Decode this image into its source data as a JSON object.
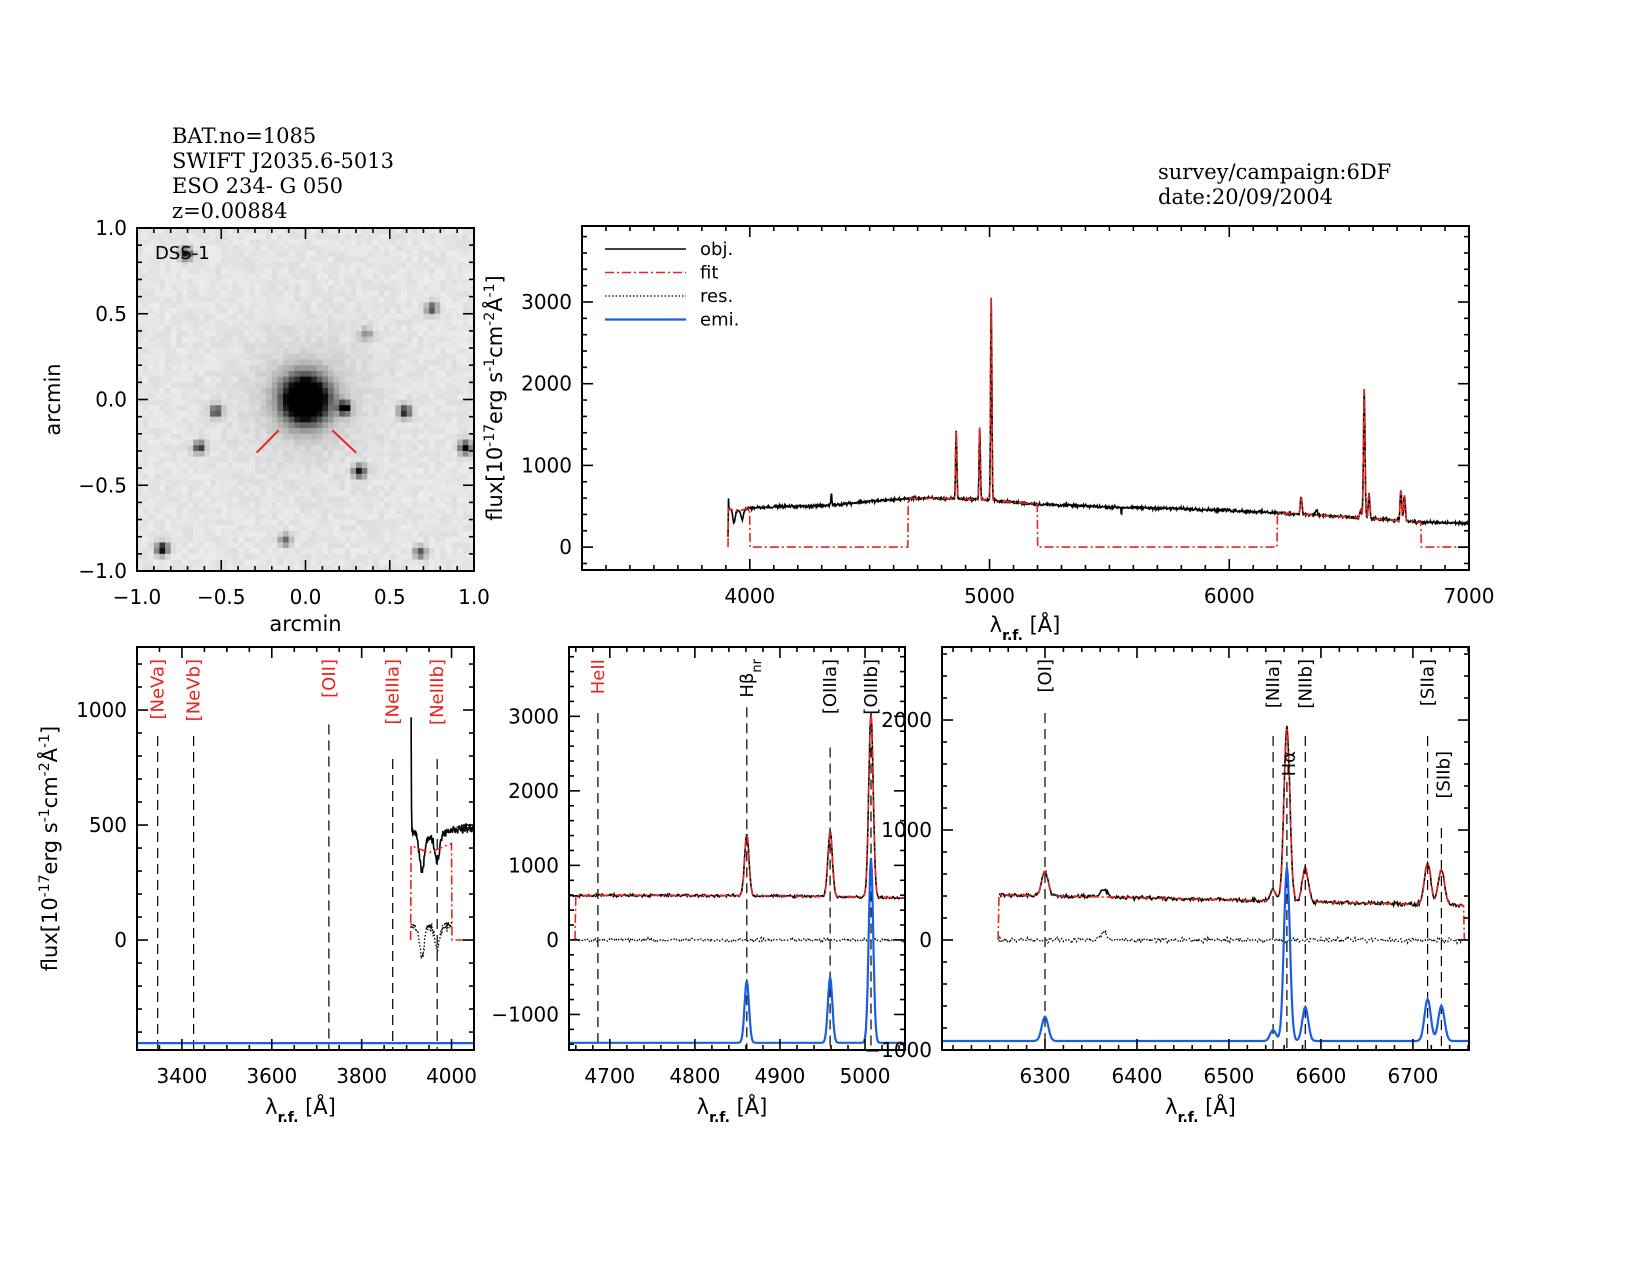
{
  "header": {
    "bat_no": "BAT.no=1085",
    "swift_name": "SWIFT J2035.6-5013",
    "galaxy_name": "ESO 234- G 050",
    "redshift": "z=0.00884",
    "survey": "survey/campaign:6DF",
    "date": "date:20/09/2004"
  },
  "colors": {
    "obj": "#000000",
    "fit": "#e8251f",
    "res": "#000000",
    "emi": "#1a5fe0",
    "marker_red": "#e8251f",
    "marker_black": "#000000"
  },
  "chart_data": {
    "type": "line",
    "dss": {
      "title": "DSS-1",
      "xlabel": "arcmin",
      "ylabel": "arcmin",
      "xlim": [
        -1.0,
        1.0
      ],
      "ylim": [
        -1.0,
        1.0
      ],
      "xticks": [
        "-1.0",
        "-0.5",
        "0.0",
        "0.5",
        "1.0"
      ],
      "yticks": [
        "-1.0",
        "-0.5",
        "0.0",
        "0.5",
        "1.0"
      ],
      "galaxy_center": [
        0.0,
        0.0
      ],
      "stars": [
        [
          0.23,
          -0.05,
          0.9
        ],
        [
          0.59,
          -0.07,
          0.7
        ],
        [
          -0.53,
          -0.07,
          0.6
        ],
        [
          -0.63,
          -0.28,
          0.6
        ],
        [
          0.32,
          -0.42,
          0.7
        ],
        [
          0.95,
          -0.28,
          0.8
        ],
        [
          -0.85,
          -0.87,
          0.8
        ],
        [
          0.68,
          -0.89,
          0.5
        ],
        [
          -0.12,
          -0.82,
          0.4
        ],
        [
          -0.71,
          0.85,
          0.7
        ],
        [
          0.75,
          0.53,
          0.5
        ],
        [
          0.36,
          0.38,
          0.3
        ]
      ],
      "markers": [
        [
          [
            -0.29,
            -0.31
          ],
          [
            -0.16,
            -0.18
          ]
        ],
        [
          [
            0.16,
            -0.18
          ],
          [
            0.3,
            -0.31
          ]
        ]
      ]
    },
    "spectrum_model": {
      "continuum_knots": [
        [
          3300,
          0
        ],
        [
          3909,
          0
        ],
        [
          3910,
          470
        ],
        [
          3950,
          440
        ],
        [
          4000,
          480
        ],
        [
          4100,
          495
        ],
        [
          4300,
          505
        ],
        [
          4500,
          560
        ],
        [
          4700,
          600
        ],
        [
          4900,
          590
        ],
        [
          5000,
          575
        ],
        [
          5200,
          525
        ],
        [
          5500,
          490
        ],
        [
          5800,
          470
        ],
        [
          6000,
          450
        ],
        [
          6200,
          420
        ],
        [
          6400,
          385
        ],
        [
          6600,
          345
        ],
        [
          6800,
          305
        ],
        [
          7000,
          290
        ]
      ],
      "lines": [
        {
          "wl": 3910,
          "amp": 480,
          "sigma": 0.6,
          "emi": false,
          "fit": false
        },
        {
          "wl": 3934,
          "amp": -150,
          "sigma": 5,
          "emi": false,
          "fit": false
        },
        {
          "wl": 3968,
          "amp": -110,
          "sigma": 5,
          "emi": false,
          "fit": false
        },
        {
          "wl": 4340,
          "amp": 140,
          "sigma": 2,
          "emi": false,
          "fit": false
        },
        {
          "wl": 4861,
          "amp": 830,
          "sigma": 2.6,
          "emi": true,
          "fit": true
        },
        {
          "wl": 4959,
          "amp": 880,
          "sigma": 2.6,
          "emi": true,
          "fit": true
        },
        {
          "wl": 5007,
          "amp": 2480,
          "sigma": 2.6,
          "emi": true,
          "fit": true
        },
        {
          "wl": 5550,
          "amp": -280,
          "sigma": 0.6,
          "emi": false,
          "fit": false
        },
        {
          "wl": 6300,
          "amp": 220,
          "sigma": 3.5,
          "emi": true,
          "fit": true
        },
        {
          "wl": 6364,
          "amp": 70,
          "sigma": 3.5,
          "emi": false,
          "fit": false
        },
        {
          "wl": 6548,
          "amp": 100,
          "sigma": 3.2,
          "emi": true,
          "fit": true
        },
        {
          "wl": 6563,
          "amp": 1580,
          "sigma": 3.2,
          "emi": true,
          "fit": true
        },
        {
          "wl": 6583,
          "amp": 310,
          "sigma": 3.2,
          "emi": true,
          "fit": true
        },
        {
          "wl": 6716,
          "amp": 380,
          "sigma": 3.4,
          "emi": true,
          "fit": true
        },
        {
          "wl": 6731,
          "amp": 320,
          "sigma": 3.4,
          "emi": true,
          "fit": true
        }
      ]
    },
    "overview": {
      "xlim": [
        3300,
        7000
      ],
      "ylim": [
        -280,
        3930
      ],
      "xticks": [
        4000,
        5000,
        6000,
        7000
      ],
      "yticks": [
        0,
        1000,
        2000,
        3000
      ],
      "xlabel_parts": [
        {
          "t": "λ"
        },
        {
          "t": "r.f.",
          "sub": true
        },
        {
          "t": " [Å]"
        }
      ],
      "ylabel_parts": [
        {
          "t": "flux[10"
        },
        {
          "t": "-17",
          "sup": true
        },
        {
          "t": "erg s"
        },
        {
          "t": "-1",
          "sup": true
        },
        {
          "t": "cm"
        },
        {
          "t": "-2",
          "sup": true
        },
        {
          "t": "Å"
        },
        {
          "t": "-1",
          "sup": true
        },
        {
          "t": "]"
        }
      ],
      "fit_windows": [
        [
          3910,
          4000
        ],
        [
          4660,
          5200
        ],
        [
          6200,
          6800
        ]
      ],
      "legend": [
        {
          "label": "obj.",
          "style": "obj"
        },
        {
          "label": "fit",
          "style": "fit"
        },
        {
          "label": "res.",
          "style": "res"
        },
        {
          "label": "emi.",
          "style": "emi"
        }
      ]
    },
    "panels": [
      {
        "id": "blue",
        "xlim": [
          3300,
          4050
        ],
        "ylim": [
          -478,
          1274
        ],
        "xticks": [
          3400,
          3600,
          3800,
          4000
        ],
        "yticks": [
          0,
          500,
          1000
        ],
        "obj_range": [
          3910,
          4050
        ],
        "fit_range": [
          3910,
          4000
        ],
        "res_range": [
          3910,
          4000
        ],
        "emi_baseline": -448,
        "xlabel_parts": [
          {
            "t": "λ"
          },
          {
            "t": "r.f.",
            "sub": true
          },
          {
            "t": " [Å]"
          }
        ],
        "ylabel_parts": [
          {
            "t": "flux[10"
          },
          {
            "t": "-17",
            "sup": true
          },
          {
            "t": "erg s"
          },
          {
            "t": "-1",
            "sup": true
          },
          {
            "t": "cm"
          },
          {
            "t": "-2",
            "sup": true
          },
          {
            "t": "Å"
          },
          {
            "t": "-1",
            "sup": true
          },
          {
            "t": "]"
          }
        ],
        "markers": [
          {
            "wl": 3346,
            "label": "[NeVa]",
            "color": "red"
          },
          {
            "wl": 3426,
            "label": "[NeVb]",
            "color": "red"
          },
          {
            "wl": 3727,
            "label": "[OII]",
            "color": "red"
          },
          {
            "wl": 3869,
            "label": "[NeIIIa]",
            "color": "red"
          },
          {
            "wl": 3968,
            "label": "[NeIIIb]",
            "color": "red"
          }
        ]
      },
      {
        "id": "hbeta",
        "xlim": [
          4652,
          5047
        ],
        "ylim": [
          -1477,
          3930
        ],
        "xticks": [
          4700,
          4800,
          4900,
          5000
        ],
        "yticks": [
          -1000,
          0,
          1000,
          2000,
          3000
        ],
        "obj_range": [
          4652,
          5047
        ],
        "fit_range": [
          4660,
          5047
        ],
        "res_range": [
          4660,
          5047
        ],
        "emi_baseline": -1380,
        "xlabel_parts": [
          {
            "t": "λ"
          },
          {
            "t": "r.f.",
            "sub": true
          },
          {
            "t": " [Å]"
          }
        ],
        "markers": [
          {
            "wl": 4686,
            "label": "HeII",
            "color": "red"
          },
          {
            "wl": 4861,
            "label": "Hβ",
            "sub": "nr",
            "color": "black"
          },
          {
            "wl": 4959,
            "label": "[OIIIa]",
            "color": "black"
          },
          {
            "wl": 5007,
            "label": "[OIIIb]",
            "color": "black"
          }
        ]
      },
      {
        "id": "halpha",
        "xlim": [
          6188,
          6761
        ],
        "ylim": [
          -1000,
          2664
        ],
        "xticks": [
          6300,
          6400,
          6500,
          6600,
          6700
        ],
        "yticks": [
          -1000,
          0,
          1000,
          2000
        ],
        "obj_range": [
          6250,
          6755
        ],
        "fit_range": [
          6250,
          6755
        ],
        "res_range": [
          6250,
          6755
        ],
        "emi_baseline": -918,
        "xlabel_parts": [
          {
            "t": "λ"
          },
          {
            "t": "r.f.",
            "sub": true
          },
          {
            "t": " [Å]"
          }
        ],
        "markers": [
          {
            "wl": 6300,
            "label": "[OI]",
            "color": "black"
          },
          {
            "wl": 6548,
            "label": "[NIIa]",
            "color": "black"
          },
          {
            "wl": 6563,
            "label": "Hα",
            "color": "black"
          },
          {
            "wl": 6583,
            "label": "[NIIb]",
            "color": "black"
          },
          {
            "wl": 6716,
            "label": "[SIIa]",
            "color": "black"
          },
          {
            "wl": 6731,
            "label": "[SIIb]",
            "color": "black"
          }
        ]
      }
    ]
  }
}
